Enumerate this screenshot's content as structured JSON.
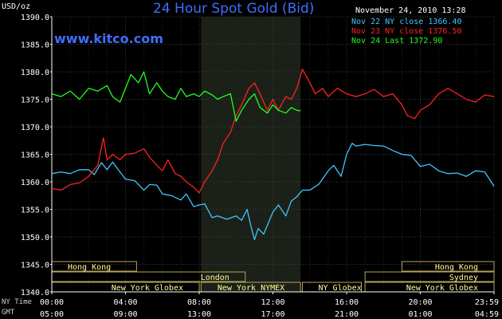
{
  "chart_data": {
    "type": "line",
    "title": "24 Hour Spot Gold (Bid)",
    "watermark": "www.kitco.com",
    "ylabel": "USD/oz",
    "timestamp": "November 24, 2010 13:28",
    "ylim": [
      1340,
      1390
    ],
    "xlim": [
      0,
      24
    ],
    "y_ticks": [
      "1340.0",
      "1345.0",
      "1350.0",
      "1355.0",
      "1360.0",
      "1365.0",
      "1370.0",
      "1375.0",
      "1380.0",
      "1385.0",
      "1390.0"
    ],
    "y_tick_values": [
      1340,
      1345,
      1350,
      1355,
      1360,
      1365,
      1370,
      1375,
      1380,
      1385,
      1390
    ],
    "x_row_labels": {
      "ny": "NY Time",
      "gmt": "GMT"
    },
    "x_ticks_ny": [
      "00:00",
      "04:00",
      "08:00",
      "12:00",
      "16:00",
      "20:00",
      "23:59"
    ],
    "x_ticks_gmt": [
      "05:00",
      "09:00",
      "13:00",
      "17:00",
      "21:00",
      "01:00",
      "04:59"
    ],
    "x_tick_values": [
      0,
      4,
      8,
      12,
      16,
      20,
      24
    ],
    "highlight_range": [
      8.1,
      13.5
    ],
    "grid": true,
    "legend_position": "top-right",
    "sessions": [
      {
        "name": "Hong Kong",
        "start": 0,
        "end": 4.6,
        "row": 0,
        "align": "left"
      },
      {
        "name": "Hong Kong",
        "start": 19.0,
        "end": 24,
        "row": 0,
        "align": "right"
      },
      {
        "name": "London",
        "start": 0,
        "end": 10.5,
        "row": 1,
        "align": "right"
      },
      {
        "name": "Sydney",
        "start": 17.0,
        "end": 24,
        "row": 1,
        "align": "right"
      },
      {
        "name": "New York Globex",
        "start": 0,
        "end": 8.0,
        "row": 2,
        "align": "right"
      },
      {
        "name": "New York NYMEX",
        "start": 8.1,
        "end": 13.5,
        "row": 2,
        "align": "right"
      },
      {
        "name": "NY Globex",
        "start": 13.6,
        "end": 16.8,
        "row": 2,
        "align": "left"
      },
      {
        "name": "New York Globex",
        "start": 17.0,
        "end": 24,
        "row": 2,
        "align": "right"
      }
    ],
    "series": [
      {
        "name": "Nov 22 NY close 1366.40",
        "color": "#3fc6ff",
        "x": [
          0,
          0.5,
          1,
          1.5,
          2,
          2.3,
          2.7,
          3,
          3.3,
          3.7,
          4,
          4.5,
          5,
          5.3,
          5.7,
          6,
          6.5,
          7,
          7.3,
          7.7,
          8,
          8.3,
          8.7,
          9,
          9.5,
          10,
          10.3,
          10.6,
          10.8,
          11,
          11.2,
          11.5,
          12,
          12.3,
          12.7,
          13,
          13.3,
          13.6,
          14,
          14.5,
          15,
          15.3,
          15.7,
          16,
          16.3,
          16.5,
          17,
          17.5,
          18,
          18.5,
          19,
          19.5,
          20,
          20.5,
          21,
          21.5,
          22,
          22.5,
          23,
          23.5,
          24
        ],
        "values": [
          1361.5,
          1361.8,
          1361.5,
          1362.2,
          1362.2,
          1361.3,
          1363.5,
          1362.2,
          1363.6,
          1361.8,
          1360.5,
          1360.2,
          1358.5,
          1359.5,
          1359.4,
          1357.8,
          1357.5,
          1356.7,
          1357.8,
          1355.5,
          1355.8,
          1356.0,
          1353.5,
          1353.8,
          1353.2,
          1353.8,
          1353.0,
          1355.0,
          1352.0,
          1349.5,
          1351.5,
          1350.5,
          1354.5,
          1355.8,
          1353.8,
          1356.5,
          1357.3,
          1358.5,
          1358.5,
          1359.6,
          1362.0,
          1363.0,
          1361.0,
          1365.0,
          1367.0,
          1366.5,
          1366.8,
          1366.6,
          1366.5,
          1365.7,
          1365.0,
          1364.8,
          1362.8,
          1363.2,
          1362.0,
          1361.5,
          1361.6,
          1361.0,
          1362.0,
          1361.8,
          1359.2
        ]
      },
      {
        "name": "Nov 23 NY close 1376.50",
        "color": "#ff2121",
        "x": [
          0,
          0.5,
          1,
          1.5,
          2,
          2.5,
          2.8,
          3,
          3.3,
          3.7,
          4,
          4.5,
          5,
          5.3,
          5.7,
          6,
          6.3,
          6.7,
          7,
          7.3,
          7.7,
          8,
          8.3,
          8.7,
          9,
          9.3,
          9.7,
          10,
          10.3,
          10.7,
          11,
          11.3,
          11.7,
          12,
          12.3,
          12.7,
          13,
          13.3,
          13.6,
          14,
          14.3,
          14.7,
          15,
          15.5,
          16,
          16.5,
          17,
          17.5,
          18,
          18.5,
          19,
          19.3,
          19.7,
          20,
          20.5,
          21,
          21.5,
          22,
          22.5,
          23,
          23.5,
          24
        ],
        "values": [
          1358.8,
          1358.5,
          1359.5,
          1359.8,
          1361.0,
          1363.0,
          1368.0,
          1364.0,
          1365.0,
          1364.0,
          1365.0,
          1365.2,
          1366.0,
          1364.5,
          1363.0,
          1362.0,
          1364.0,
          1361.5,
          1361.0,
          1360.0,
          1359.0,
          1358.0,
          1360.0,
          1362.0,
          1364.0,
          1367.0,
          1369.0,
          1372.0,
          1374.0,
          1377.0,
          1378.0,
          1376.0,
          1373.0,
          1375.0,
          1373.0,
          1375.5,
          1375.0,
          1377.0,
          1380.5,
          1378.0,
          1376.0,
          1377.0,
          1375.5,
          1377.0,
          1376.0,
          1375.5,
          1376.0,
          1376.8,
          1375.5,
          1376.0,
          1374.0,
          1372.0,
          1371.5,
          1373.0,
          1374.0,
          1376.0,
          1377.0,
          1376.0,
          1375.0,
          1374.5,
          1375.8,
          1375.5
        ]
      },
      {
        "name": "Nov 24 Last 1372.90",
        "color": "#1fff1f",
        "x": [
          0,
          0.5,
          1,
          1.5,
          2,
          2.5,
          3,
          3.3,
          3.7,
          4,
          4.3,
          4.7,
          5,
          5.3,
          5.7,
          6,
          6.3,
          6.7,
          7,
          7.3,
          7.7,
          8,
          8.3,
          8.7,
          9,
          9.3,
          9.7,
          10,
          10.3,
          10.7,
          11,
          11.3,
          11.7,
          12,
          12.3,
          12.7,
          13,
          13.3,
          13.5
        ],
        "values": [
          1376.0,
          1375.5,
          1376.5,
          1375.0,
          1377.0,
          1376.5,
          1377.5,
          1375.5,
          1374.5,
          1377.0,
          1379.5,
          1378.0,
          1380.0,
          1376.0,
          1378.0,
          1376.5,
          1375.5,
          1375.0,
          1377.0,
          1375.5,
          1376.0,
          1375.5,
          1376.5,
          1375.8,
          1375.0,
          1375.5,
          1376.0,
          1371.0,
          1373.0,
          1375.0,
          1376.0,
          1373.5,
          1372.5,
          1374.0,
          1373.0,
          1372.5,
          1373.5,
          1373.0,
          1372.9
        ]
      }
    ]
  }
}
